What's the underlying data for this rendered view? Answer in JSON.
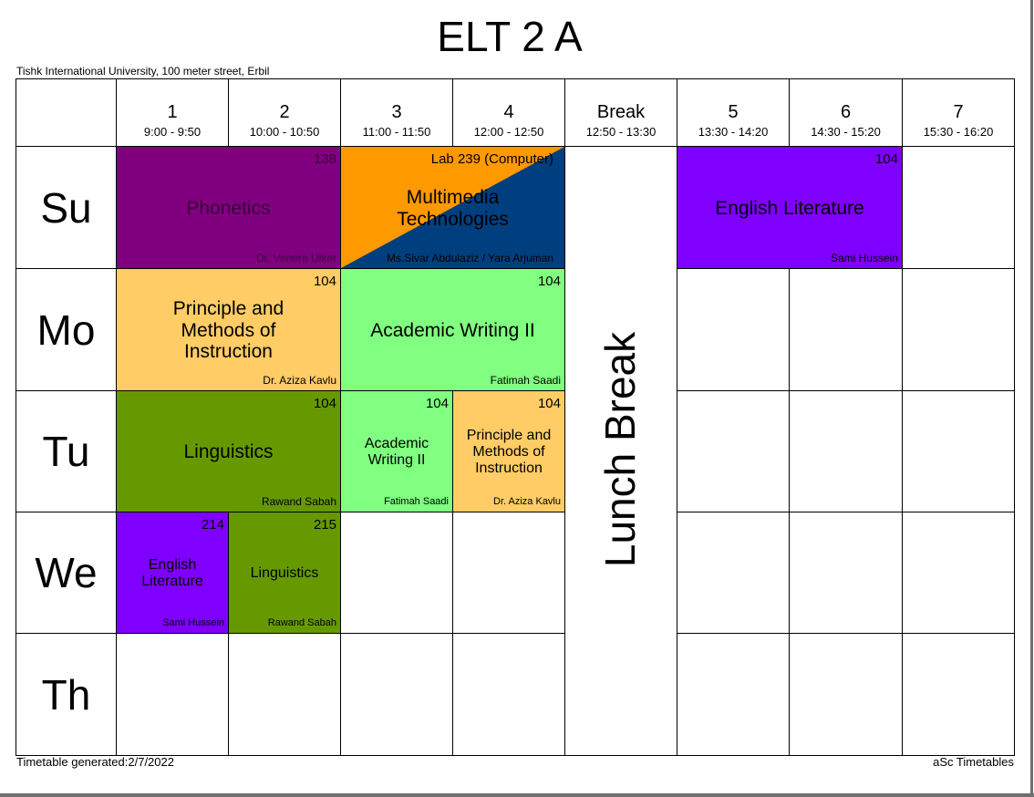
{
  "title": "ELT 2 A",
  "school": "Tishk International University, 100 meter street, Erbil",
  "footer": {
    "generated": "Timetable generated:2/7/2022",
    "brand": "aSc Timetables"
  },
  "periods": [
    {
      "label": "1",
      "time": "9:00 - 9:50"
    },
    {
      "label": "2",
      "time": "10:00 - 10:50"
    },
    {
      "label": "3",
      "time": "11:00 - 11:50"
    },
    {
      "label": "4",
      "time": "12:00 - 12:50"
    },
    {
      "label": "Break",
      "time": "12:50 - 13:30"
    },
    {
      "label": "5",
      "time": "13:30 - 14:20"
    },
    {
      "label": "6",
      "time": "14:30 - 15:20"
    },
    {
      "label": "7",
      "time": "15:30 - 16:20"
    }
  ],
  "days": [
    "Su",
    "Mo",
    "Tu",
    "We",
    "Th"
  ],
  "break_label": "Lunch Break",
  "colors": {
    "purple": "#800080",
    "orange": "#ff9900",
    "navy": "#003f7f",
    "violet": "#8000ff",
    "peach": "#ffcc66",
    "light_green": "#80ff80",
    "olive": "#669900"
  },
  "lessons": {
    "su_phonetics": {
      "room": "138",
      "subject": "Phonetics",
      "teacher": "Dr. Venera Ulker"
    },
    "su_multimedia": {
      "room": "Lab 239 (Computer)",
      "subject": "Multimedia Technologies",
      "teacher": "Ms.Sivar Abdulaziz / Yara Arjuman"
    },
    "su_english_lit": {
      "room": "104",
      "subject": "English Literature",
      "teacher": "Sami Hussein"
    },
    "mo_principle": {
      "room": "104",
      "subject": "Principle and Methods of Instruction",
      "teacher": "Dr. Aziza Kavlu"
    },
    "mo_academic": {
      "room": "104",
      "subject": "Academic Writing II",
      "teacher": "Fatimah Saadi"
    },
    "tu_linguistics": {
      "room": "104",
      "subject": "Linguistics",
      "teacher": "Rawand Sabah"
    },
    "tu_academic": {
      "room": "104",
      "subject": "Academic Writing II",
      "teacher": "Fatimah Saadi"
    },
    "tu_principle": {
      "room": "104",
      "subject": "Principle and Methods of Instruction",
      "teacher": "Dr. Aziza Kavlu"
    },
    "we_english_lit": {
      "room": "214",
      "subject": "English Literature",
      "teacher": "Sami Hussein"
    },
    "we_linguistics": {
      "room": "215",
      "subject": "Linguistics",
      "teacher": "Rawand Sabah"
    }
  }
}
